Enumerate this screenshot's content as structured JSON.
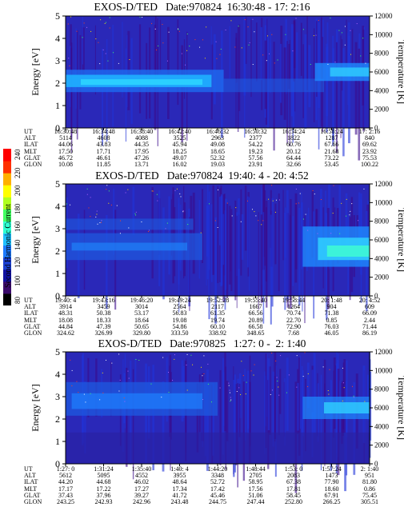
{
  "colorbar": {
    "title": "Second Harmonic Current",
    "ticks": [
      "240",
      "220",
      "200",
      "180",
      "160",
      "140",
      "120",
      "100",
      "80"
    ],
    "colors": [
      "#000000",
      "#3a0a6a",
      "#1010a0",
      "#1a3fd0",
      "#1e7aff",
      "#20c0ff",
      "#30ffd0",
      "#40ff60",
      "#b0ff20",
      "#ffff00",
      "#ffb000",
      "#ff3000",
      "#ff0000"
    ]
  },
  "chart_data": [
    {
      "type": "heatmap",
      "title": "EXOS-D/TED   Date:970824  16:30:48 - 17: 2:16",
      "ylabel": "Energy [eV]",
      "y2label": "Temperature [K]",
      "ylim": [
        0,
        5
      ],
      "y2lim": [
        0,
        12000
      ],
      "yticks": [
        "0",
        "1",
        "2",
        "3",
        "4",
        "5"
      ],
      "y2ticks": [
        "0",
        "2000",
        "4000",
        "6000",
        "8000",
        "10000",
        "12000"
      ],
      "band": {
        "x_frac_end": [
          0.5,
          0.8,
          1.0
        ],
        "center": [
          2.15,
          1.85,
          2.4
        ],
        "width": [
          0.55,
          0.4,
          0.45
        ]
      },
      "ephemeris": {
        "labels": [
          "UT",
          "ALT",
          "ILAT",
          "MLT",
          "GLAT",
          "GLON"
        ],
        "columns": [
          [
            "16:30:48",
            "5114",
            "44.06",
            "17.50",
            "46.72",
            "10.08"
          ],
          [
            "16:34:48",
            "4608",
            "43.83",
            "17.71",
            "46.61",
            "11.85"
          ],
          [
            "16:38:40",
            "4088",
            "44.35",
            "17.95",
            "47.26",
            "13.71"
          ],
          [
            "16:42:40",
            "3525",
            "45.94",
            "18.25",
            "49.07",
            "16.02"
          ],
          [
            "16:46:32",
            "2963",
            "49.08",
            "18.65",
            "52.32",
            "19.03"
          ],
          [
            "16:50:32",
            "2377",
            "54.22",
            "19.23",
            "57.56",
            "23.91"
          ],
          [
            "16:54:24",
            "1822",
            "60.76",
            "20.12",
            "64.44",
            "32.66"
          ],
          [
            "16:58:24",
            "1287",
            "67.66",
            "21.68",
            "73.22",
            "53.45"
          ],
          [
            "17: 2:16",
            "840",
            "69.62",
            "23.92",
            "75.53",
            "100.22"
          ]
        ]
      }
    },
    {
      "type": "heatmap",
      "title": "EXOS-D/TED   Date:970824  19:40: 4 - 20: 4:52",
      "ylabel": "Energy [eV]",
      "y2label": "Temperature [K]",
      "ylim": [
        0,
        5
      ],
      "y2lim": [
        0,
        12000
      ],
      "yticks": [
        "0",
        "1",
        "2",
        "3",
        "4",
        "5"
      ],
      "y2ticks": [
        "0",
        "2000",
        "4000",
        "6000",
        "8000",
        "10000",
        "12000"
      ],
      "ephemeris": {
        "labels": [
          "UT",
          "ALT",
          "ILAT",
          "MLT",
          "GLAT",
          "GLON"
        ],
        "columns": [
          [
            "19:40: 4",
            "3914",
            "48.31",
            "18.08",
            "44.84",
            "324.62"
          ],
          [
            "19:43:16",
            "3459",
            "50.38",
            "18.33",
            "47.39",
            "326.99"
          ],
          [
            "19:46:20",
            "3014",
            "53.17",
            "18.64",
            "50.65",
            "329.80"
          ],
          [
            "19:49:24",
            "2564",
            "56.83",
            "19.08",
            "54.86",
            "333.50"
          ],
          [
            "19:52:28",
            "2117",
            "61.35",
            "19.74",
            "60.10",
            "338.92"
          ],
          [
            "19:55:40",
            "1667",
            "66.56",
            "20.89",
            "66.58",
            "348.65"
          ],
          [
            "19:58:44",
            "1264",
            "70.74",
            "22.70",
            "72.90",
            "7.68"
          ],
          [
            "20: 1:48",
            "904",
            "71.38",
            "0.85",
            "76.03",
            "46.05"
          ],
          [
            "20: 4:52",
            "609",
            "66.09",
            "2.44",
            "71.44",
            "86.19"
          ]
        ]
      }
    },
    {
      "type": "heatmap",
      "title": "EXOS-D/TED   Date:970825   1:27: 0 -  2: 1:40",
      "ylabel": "Energy [eV]",
      "y2label": "Temperature [K]",
      "ylim": [
        0,
        5
      ],
      "y2lim": [
        0,
        12000
      ],
      "yticks": [
        "0",
        "1",
        "2",
        "3",
        "4",
        "5"
      ],
      "y2ticks": [
        "0",
        "2000",
        "4000",
        "6000",
        "8000",
        "10000",
        "12000"
      ],
      "ephemeris": {
        "labels": [
          "UT",
          "ALT",
          "ILAT",
          "MLT",
          "GLAT",
          "GLON"
        ],
        "columns": [
          [
            " 1:27: 0",
            "5612",
            "44.20",
            "17.17",
            "37.43",
            "243.25"
          ],
          [
            " 1:31:24",
            "5095",
            "44.68",
            "17.22",
            "37.96",
            "242.93"
          ],
          [
            " 1:35:40",
            "4552",
            "46.02",
            "17.27",
            "39.27",
            "242.96"
          ],
          [
            " 1:40: 4",
            "3955",
            "48.64",
            "17.34",
            "41.72",
            "243.48"
          ],
          [
            " 1:44:20",
            "3348",
            "52.72",
            "17.42",
            "45.46",
            "244.75"
          ],
          [
            " 1:48:44",
            "2705",
            "58.95",
            "17.56",
            "51.06",
            "247.44"
          ],
          [
            " 1:53: 0",
            "2083",
            "67.38",
            "17.81",
            "58.45",
            "252.80"
          ],
          [
            " 1:57:24",
            "1473",
            "77.90",
            "18.60",
            "67.91",
            "266.25"
          ],
          [
            " 2: 1:40",
            "951",
            "81.80",
            "0.86",
            "75.45",
            "305.51"
          ]
        ]
      }
    }
  ]
}
